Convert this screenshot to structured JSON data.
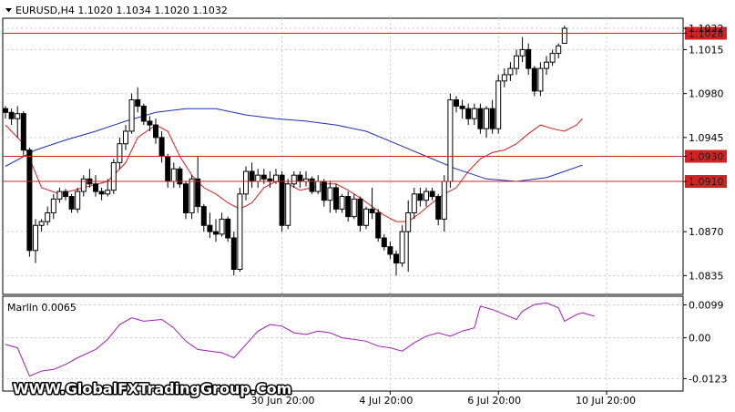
{
  "window": {
    "symbol_info": "EURUSD,H4  1.1020 1.1034 1.1020 1.1032",
    "indicator_label": "Marlin 0.0065",
    "watermark": "WWW.GlobalFXTradingGroup.Com"
  },
  "colors": {
    "background": "#ffffff",
    "grid": "#c8c8c8",
    "candle": "#000000",
    "level_line": "#d42020",
    "ma_fast": "#d42020",
    "ma_slow": "#1a2fb4",
    "oscillator": "#9b1fb0",
    "price_tag_bg": "#d42020",
    "price_tag_text": "#ffffff"
  },
  "chart_data": [
    {
      "type": "candlestick",
      "title": "EURUSD,H4  1.1020 1.1034 1.1020 1.1032",
      "ylim": [
        1.082,
        1.104
      ],
      "y_ticks": [
        "1.0835",
        "1.0870",
        "1.0910",
        "1.0930",
        "1.0945",
        "1.0980",
        "1.1015",
        "1.1028",
        "1.1032"
      ],
      "x_tick_labels": [
        "30 Jun 20:00",
        "4 Jul 20:00",
        "6 Jul 20:00",
        "10 Jul 20:00"
      ],
      "x_tick_index": [
        46,
        64,
        82,
        100
      ],
      "levels": [
        {
          "label": "1.1028",
          "value": 1.1028
        },
        {
          "label": "1.0930",
          "value": 1.093
        },
        {
          "label": "1.0910",
          "value": 1.091
        }
      ],
      "candles": [
        [
          1.0968,
          1.097,
          1.096,
          1.0965
        ],
        [
          1.0965,
          1.0968,
          1.0955,
          1.096
        ],
        [
          1.096,
          1.097,
          1.0945,
          1.0964
        ],
        [
          1.0964,
          1.0966,
          1.093,
          1.0935
        ],
        [
          1.0935,
          1.0937,
          1.085,
          1.0855
        ],
        [
          1.0855,
          1.088,
          1.0845,
          1.0875
        ],
        [
          1.0875,
          1.088,
          1.087,
          1.0878
        ],
        [
          1.0878,
          1.089,
          1.0875,
          1.0885
        ],
        [
          1.0885,
          1.09,
          1.088,
          1.0896
        ],
        [
          1.0896,
          1.0905,
          1.0893,
          1.0902
        ],
        [
          1.0902,
          1.0904,
          1.0895,
          1.0898
        ],
        [
          1.0898,
          1.09,
          1.0885,
          1.0888
        ],
        [
          1.0888,
          1.0905,
          1.0885,
          1.0902
        ],
        [
          1.0902,
          1.0915,
          1.0898,
          1.0912
        ],
        [
          1.0912,
          1.092,
          1.0905,
          1.0908
        ],
        [
          1.0908,
          1.0915,
          1.0898,
          1.0902
        ],
        [
          1.0902,
          1.0905,
          1.0895,
          1.09
        ],
        [
          1.09,
          1.0912,
          1.0898,
          1.0903
        ],
        [
          1.0903,
          1.0928,
          1.09,
          1.0925
        ],
        [
          1.0925,
          1.0945,
          1.092,
          1.094
        ],
        [
          1.094,
          1.0955,
          1.0935,
          1.095
        ],
        [
          1.095,
          1.098,
          1.0948,
          1.0975
        ],
        [
          1.0975,
          1.0985,
          1.0965,
          1.097
        ],
        [
          1.097,
          1.0972,
          1.0955,
          1.0958
        ],
        [
          1.0958,
          1.0962,
          1.095,
          1.0955
        ],
        [
          1.0955,
          1.096,
          1.094,
          1.0945
        ],
        [
          1.0945,
          1.095,
          1.0925,
          1.093
        ],
        [
          1.093,
          1.0932,
          1.0905,
          1.091
        ],
        [
          1.091,
          1.0925,
          1.0905,
          1.092
        ],
        [
          1.092,
          1.0922,
          1.0905,
          1.0908
        ],
        [
          1.0908,
          1.091,
          1.088,
          1.0885
        ],
        [
          1.0885,
          1.0915,
          1.088,
          1.0912
        ],
        [
          1.0912,
          1.093,
          1.0885,
          1.089
        ],
        [
          1.089,
          1.0892,
          1.087,
          1.0875
        ],
        [
          1.0875,
          1.0885,
          1.0865,
          1.087
        ],
        [
          1.087,
          1.088,
          1.0862,
          1.0868
        ],
        [
          1.0868,
          1.0885,
          1.0866,
          1.088
        ],
        [
          1.088,
          1.0882,
          1.0862,
          1.0865
        ],
        [
          1.0865,
          1.087,
          1.0835,
          1.084
        ],
        [
          1.084,
          1.0905,
          1.0838,
          1.09
        ],
        [
          1.09,
          1.0922,
          1.0895,
          1.0918
        ],
        [
          1.0918,
          1.0925,
          1.0905,
          1.091
        ],
        [
          1.091,
          1.092,
          1.0905,
          1.0915
        ],
        [
          1.0915,
          1.092,
          1.0908,
          1.0912
        ],
        [
          1.0912,
          1.0918,
          1.0905,
          1.091
        ],
        [
          1.091,
          1.092,
          1.0908,
          1.0915
        ],
        [
          1.0915,
          1.0918,
          1.087,
          1.0875
        ],
        [
          1.0875,
          1.0912,
          1.0872,
          1.0908
        ],
        [
          1.0908,
          1.0918,
          1.0905,
          1.0915
        ],
        [
          1.0915,
          1.0918,
          1.0905,
          1.091
        ],
        [
          1.091,
          1.0918,
          1.0906,
          1.0912
        ],
        [
          1.0912,
          1.0914,
          1.09,
          1.0902
        ],
        [
          1.0902,
          1.0915,
          1.09,
          1.091
        ],
        [
          1.091,
          1.0912,
          1.089,
          1.0895
        ],
        [
          1.0895,
          1.091,
          1.0885,
          1.0905
        ],
        [
          1.0905,
          1.0908,
          1.0885,
          1.0888
        ],
        [
          1.0888,
          1.09,
          1.0885,
          1.0898
        ],
        [
          1.0898,
          1.0902,
          1.0878,
          1.0882
        ],
        [
          1.0882,
          1.09,
          1.088,
          1.0896
        ],
        [
          1.0896,
          1.0898,
          1.087,
          1.0875
        ],
        [
          1.0875,
          1.089,
          1.0872,
          1.0888
        ],
        [
          1.0888,
          1.0905,
          1.088,
          1.0885
        ],
        [
          1.0885,
          1.0888,
          1.0862,
          1.0865
        ],
        [
          1.0865,
          1.0868,
          1.0855,
          1.0858
        ],
        [
          1.0858,
          1.0862,
          1.0848,
          1.0852
        ],
        [
          1.0852,
          1.0855,
          1.0835,
          1.0845
        ],
        [
          1.0845,
          1.0875,
          1.0842,
          1.087
        ],
        [
          1.087,
          1.0895,
          1.0838,
          1.0885
        ],
        [
          1.0885,
          1.0905,
          1.088,
          1.09
        ],
        [
          1.09,
          1.0905,
          1.089,
          1.0895
        ],
        [
          1.0895,
          1.0905,
          1.089,
          1.0902
        ],
        [
          1.0902,
          1.0905,
          1.0895,
          1.0898
        ],
        [
          1.0898,
          1.09,
          1.0875,
          1.088
        ],
        [
          1.088,
          1.0915,
          1.087,
          1.091
        ],
        [
          1.091,
          1.098,
          1.0905,
          1.0975
        ],
        [
          1.0975,
          1.0978,
          1.0965,
          1.097
        ],
        [
          1.097,
          1.0975,
          1.096,
          1.0968
        ],
        [
          1.0968,
          1.0972,
          1.0955,
          1.096
        ],
        [
          1.096,
          1.0972,
          1.0955,
          1.0968
        ],
        [
          1.0968,
          1.0972,
          1.0948,
          1.0952
        ],
        [
          1.0952,
          1.097,
          1.0945,
          1.0968
        ],
        [
          1.0968,
          1.0975,
          1.0948,
          1.0952
        ],
        [
          1.0952,
          1.0995,
          1.0948,
          1.099
        ],
        [
          1.099,
          1.1,
          1.0985,
          1.0995
        ],
        [
          1.0995,
          1.1005,
          1.099,
          1.1
        ],
        [
          1.1,
          1.1015,
          1.0995,
          1.101
        ],
        [
          1.101,
          1.1025,
          1.1005,
          1.1015
        ],
        [
          1.1015,
          1.102,
          1.0995,
          1.1
        ],
        [
          1.1,
          1.1002,
          1.0978,
          1.0982
        ],
        [
          1.0982,
          1.1005,
          1.0978,
          1.1
        ],
        [
          1.1,
          1.101,
          1.0995,
          1.1005
        ],
        [
          1.1005,
          1.1015,
          1.1002,
          1.1012
        ],
        [
          1.1012,
          1.102,
          1.1008,
          1.1018
        ],
        [
          1.102,
          1.1034,
          1.102,
          1.1032
        ]
      ],
      "ma_fast": [
        [
          0,
          1.0955
        ],
        [
          3,
          1.094
        ],
        [
          6,
          1.0905
        ],
        [
          9,
          1.09
        ],
        [
          13,
          1.0905
        ],
        [
          17,
          1.091
        ],
        [
          20,
          1.0925
        ],
        [
          22,
          1.0945
        ],
        [
          25,
          1.0955
        ],
        [
          27,
          1.095
        ],
        [
          29,
          1.093
        ],
        [
          31,
          1.0915
        ],
        [
          33,
          1.0905
        ],
        [
          35,
          1.09
        ],
        [
          37,
          1.0893
        ],
        [
          39,
          1.0888
        ],
        [
          41,
          1.0893
        ],
        [
          43,
          1.0905
        ],
        [
          45,
          1.091
        ],
        [
          47,
          1.0908
        ],
        [
          49,
          1.0903
        ],
        [
          51,
          1.0905
        ],
        [
          53,
          1.0908
        ],
        [
          55,
          1.0908
        ],
        [
          57,
          1.0903
        ],
        [
          59,
          1.0897
        ],
        [
          61,
          1.089
        ],
        [
          63,
          1.0883
        ],
        [
          65,
          1.0878
        ],
        [
          67,
          1.0878
        ],
        [
          69,
          1.0885
        ],
        [
          71,
          1.0893
        ],
        [
          73,
          1.09
        ],
        [
          75,
          1.0905
        ],
        [
          77,
          1.0918
        ],
        [
          79,
          1.0928
        ],
        [
          81,
          1.0933
        ],
        [
          83,
          1.0935
        ],
        [
          85,
          1.094
        ],
        [
          87,
          1.0948
        ],
        [
          89,
          1.0955
        ],
        [
          91,
          1.0952
        ],
        [
          93,
          1.095
        ],
        [
          95,
          1.0955
        ],
        [
          96,
          1.096
        ]
      ],
      "ma_slow": [
        [
          0,
          1.0922
        ],
        [
          5,
          1.0935
        ],
        [
          10,
          1.0943
        ],
        [
          15,
          1.095
        ],
        [
          20,
          1.0958
        ],
        [
          25,
          1.0965
        ],
        [
          30,
          1.0968
        ],
        [
          35,
          1.0968
        ],
        [
          40,
          1.0963
        ],
        [
          45,
          1.096
        ],
        [
          50,
          1.0958
        ],
        [
          55,
          1.0955
        ],
        [
          60,
          1.095
        ],
        [
          65,
          1.094
        ],
        [
          70,
          1.093
        ],
        [
          75,
          1.092
        ],
        [
          80,
          1.0912
        ],
        [
          85,
          1.091
        ],
        [
          90,
          1.0913
        ],
        [
          93,
          1.0918
        ],
        [
          96,
          1.0923
        ]
      ],
      "oscillator": {
        "name": "Marlin",
        "value_label": "0.0065",
        "ylim": [
          -0.016,
          0.0125
        ],
        "y_ticks": [
          "0.0099",
          "0.00",
          "-0.0123"
        ],
        "points": [
          [
            0,
            -0.002
          ],
          [
            2,
            -0.003
          ],
          [
            4,
            -0.0115
          ],
          [
            6,
            -0.01
          ],
          [
            8,
            -0.0095
          ],
          [
            10,
            -0.008
          ],
          [
            12,
            -0.006
          ],
          [
            15,
            -0.0035
          ],
          [
            17,
            -0.0005
          ],
          [
            19,
            0.004
          ],
          [
            21,
            0.006
          ],
          [
            23,
            0.005
          ],
          [
            26,
            0.0055
          ],
          [
            28,
            0.003
          ],
          [
            30,
            -0.001
          ],
          [
            32,
            -0.0035
          ],
          [
            34,
            -0.004
          ],
          [
            36,
            -0.0045
          ],
          [
            38,
            -0.006
          ],
          [
            40,
            -0.002
          ],
          [
            42,
            0.002
          ],
          [
            44,
            0.004
          ],
          [
            46,
            0.0035
          ],
          [
            48,
            0.0015
          ],
          [
            50,
            0.001
          ],
          [
            52,
            0.002
          ],
          [
            54,
            0.0015
          ],
          [
            56,
            0.0
          ],
          [
            58,
            -0.0005
          ],
          [
            60,
            -0.001
          ],
          [
            62,
            -0.0025
          ],
          [
            64,
            -0.003
          ],
          [
            66,
            -0.004
          ],
          [
            68,
            -0.0015
          ],
          [
            70,
            0.0005
          ],
          [
            72,
            0.0015
          ],
          [
            74,
            0.0005
          ],
          [
            76,
            0.002
          ],
          [
            78,
            0.003
          ],
          [
            79,
            0.0095
          ],
          [
            81,
            0.0085
          ],
          [
            83,
            0.007
          ],
          [
            85,
            0.0055
          ],
          [
            86,
            0.008
          ],
          [
            88,
            0.01
          ],
          [
            90,
            0.0105
          ],
          [
            92,
            0.009
          ],
          [
            93,
            0.005
          ],
          [
            95,
            0.007
          ],
          [
            96,
            0.0075
          ],
          [
            97,
            0.007
          ],
          [
            98,
            0.0065
          ]
        ]
      }
    }
  ]
}
